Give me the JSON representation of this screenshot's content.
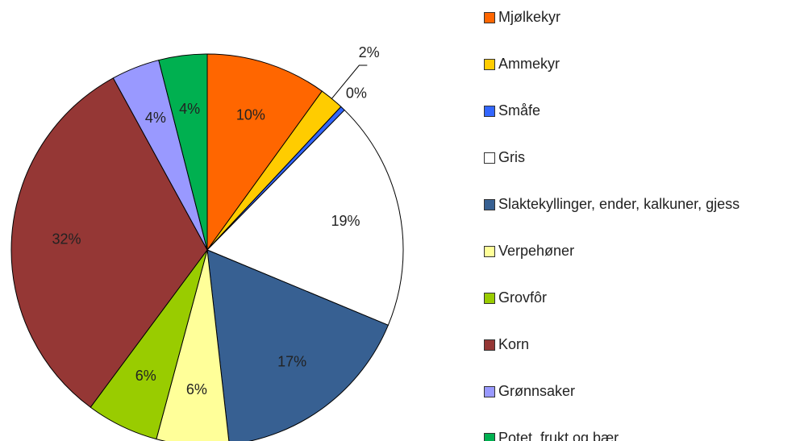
{
  "chart_data": {
    "type": "pie",
    "categories": [
      "Mjølkekyr",
      "Ammekyr",
      "Småfe",
      "Gris",
      "Slaktekyllinger, ender, kalkuner, gjess",
      "Verpehøner",
      "Grovfôr",
      "Korn",
      "Grønnsaker",
      "Potet, frukt og bær"
    ],
    "values": [
      10,
      2,
      0.4,
      19,
      17,
      6,
      6,
      32,
      4,
      4
    ],
    "value_labels": [
      "10%",
      "2%",
      "0%",
      "19%",
      "17%",
      "6%",
      "6%",
      "32%",
      "4%",
      "4%"
    ],
    "colors": [
      "#ff6600",
      "#ffcc00",
      "#3366ff",
      "#ffffff",
      "#376092",
      "#ffff99",
      "#99cc00",
      "#953735",
      "#9999ff",
      "#00b050"
    ],
    "legend": "right"
  }
}
